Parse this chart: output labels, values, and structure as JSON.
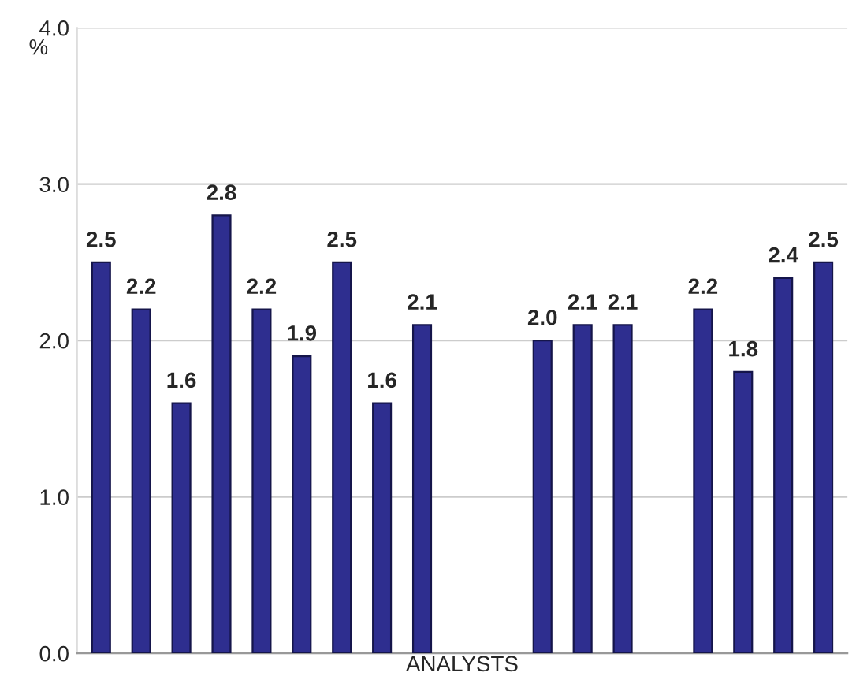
{
  "chart_data": {
    "type": "bar",
    "xlabel": "ANALYSTS",
    "ylabel": "%",
    "categories": [
      null,
      null,
      null,
      null,
      null,
      null,
      null,
      null,
      null,
      null,
      null,
      null,
      null,
      null,
      null,
      null,
      null,
      null,
      null
    ],
    "values": [
      2.5,
      2.2,
      1.6,
      2.8,
      2.2,
      1.9,
      2.5,
      1.6,
      2.1,
      null,
      null,
      2.0,
      2.1,
      2.1,
      null,
      2.2,
      1.8,
      2.4,
      2.5
    ],
    "color": "#2e2e8f",
    "ylim": [
      0,
      4
    ],
    "yticks": [
      {
        "value": 0,
        "label": "0.0"
      },
      {
        "value": 1,
        "label": "1.0"
      },
      {
        "value": 2,
        "label": "2.0"
      },
      {
        "value": 3,
        "label": "3.0"
      },
      {
        "value": 4,
        "label": "4.0"
      }
    ],
    "value_labels": [
      "2.5",
      "2.2",
      "1.6",
      "2.8",
      "2.2",
      "1.9",
      "2.5",
      "1.6",
      "2.1",
      null,
      null,
      "2.0",
      "2.1",
      "2.1",
      null,
      "2.2",
      "1.8",
      "2.4",
      "2.5"
    ],
    "grid": "y",
    "tick_labels": "y"
  }
}
